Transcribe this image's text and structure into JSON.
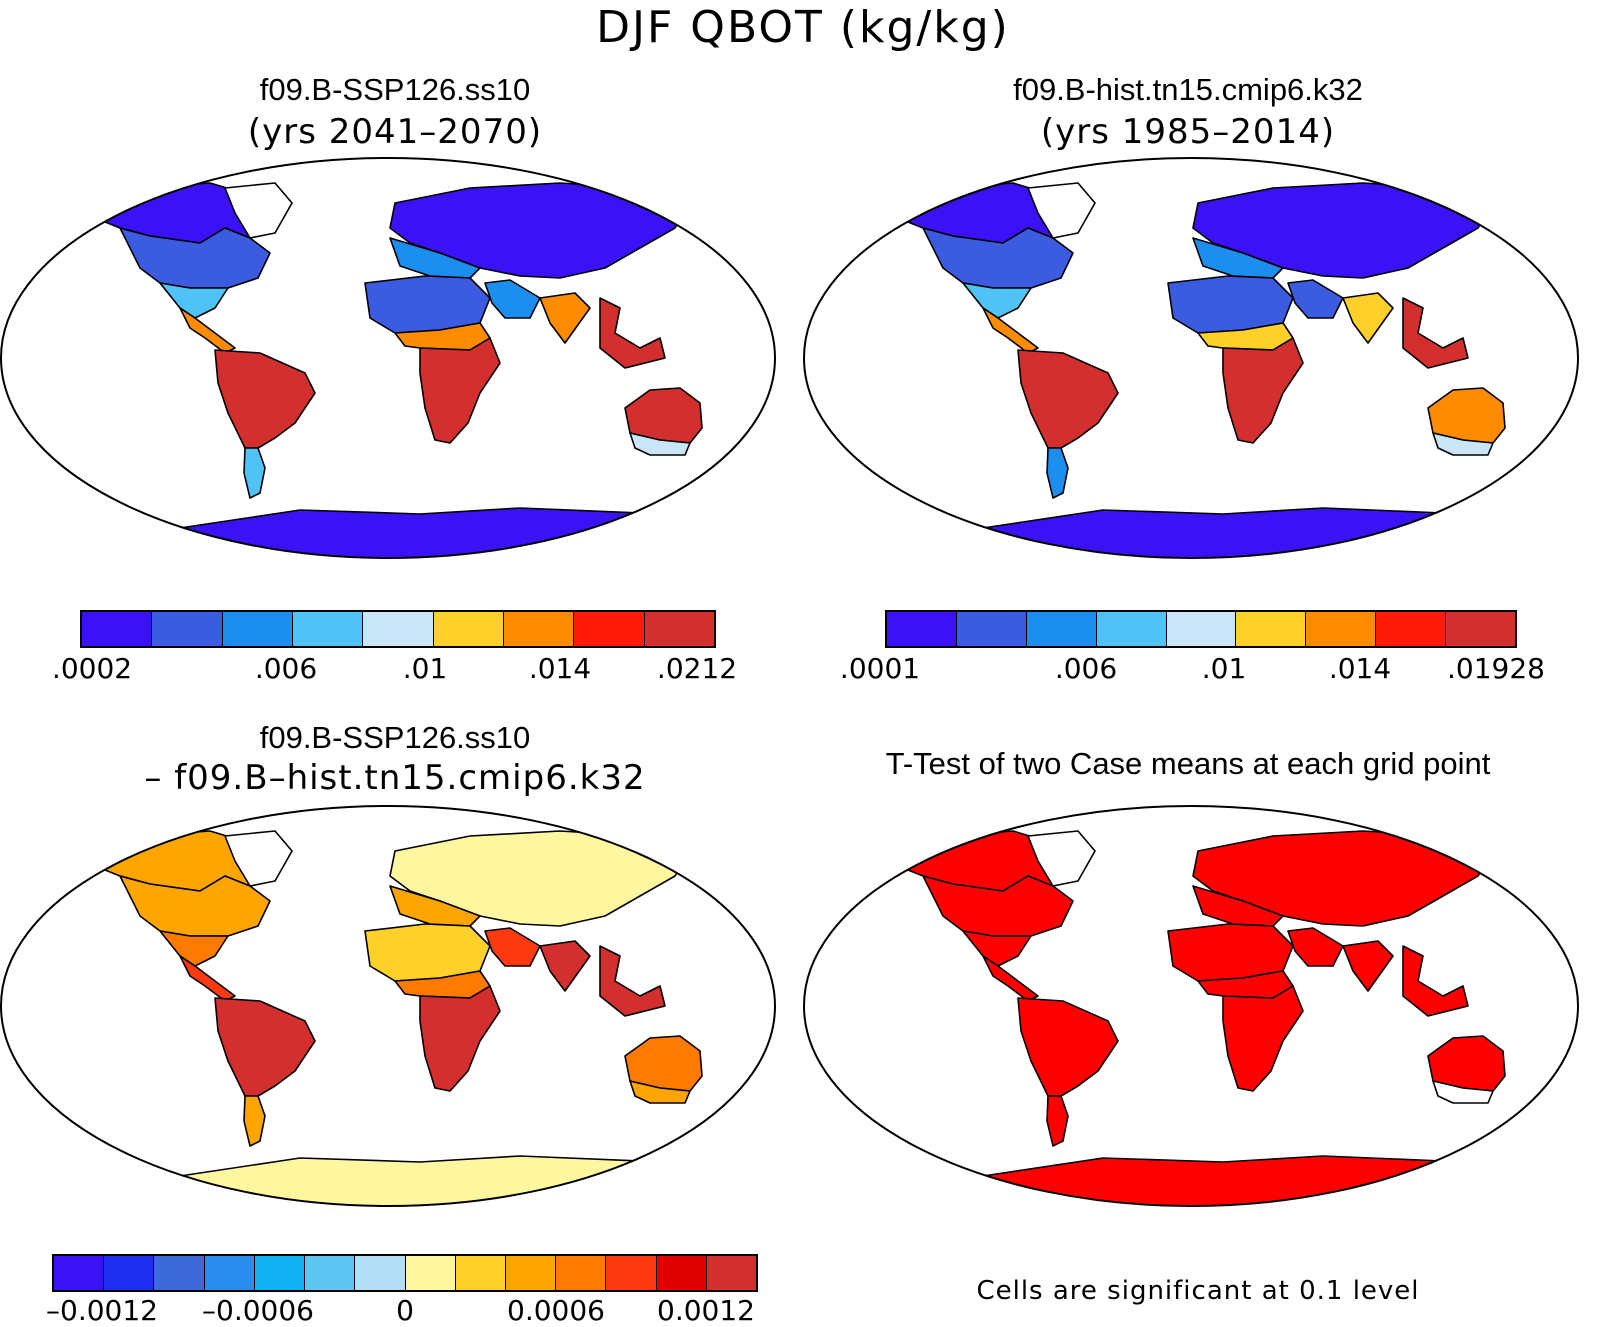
{
  "figure": {
    "title": "DJF QBOT (kg/kg)"
  },
  "panels": [
    {
      "id": "future",
      "title": "f09.B-SSP126.ss10",
      "subtitle": "(yrs 2041–2070)",
      "colorbar": {
        "colors": [
          "#3a12f5",
          "#3b5be0",
          "#1b8ef0",
          "#4fc3f5",
          "#c8e6f7",
          "#ffd02a",
          "#ff8c00",
          "#ff1a0a",
          "#d42f2f"
        ],
        "labels": [
          ".0002",
          ".006",
          ".01",
          ".014",
          ".0212"
        ]
      }
    },
    {
      "id": "historical",
      "title": "f09.B-hist.tn15.cmip6.k32",
      "subtitle": "(yrs 1985–2014)",
      "colorbar": {
        "colors": [
          "#3a12f5",
          "#3b5be0",
          "#1b8ef0",
          "#4fc3f5",
          "#c8e6f7",
          "#ffd02a",
          "#ff8c00",
          "#ff1a0a",
          "#d42f2f"
        ],
        "labels": [
          ".0001",
          ".006",
          ".01",
          ".014",
          ".01928"
        ]
      }
    },
    {
      "id": "difference",
      "title": "f09.B-SSP126.ss10",
      "subtitle": "– f09.B–hist.tn15.cmip6.k32",
      "colorbar": {
        "colors": [
          "#3a12f5",
          "#2030f0",
          "#3b6ad8",
          "#2a8ef0",
          "#12b2f5",
          "#5ec4f0",
          "#b3def5",
          "#fff6a0",
          "#ffd02a",
          "#ffa500",
          "#ff7a00",
          "#ff3a10",
          "#e00000",
          "#d42f2f"
        ],
        "labels": [
          "–0.0012",
          "–0.0006",
          "0",
          "0.0006",
          "0.0012"
        ]
      }
    },
    {
      "id": "ttest",
      "title": "T-Test of two Case means at each grid point",
      "note": "Cells are significant at 0.1 level"
    }
  ],
  "maps": {
    "future": {
      "fills": {
        "north_america_north": "#3a12f5",
        "north_america_mid": "#3b5be0",
        "north_america_south": "#4fc3f5",
        "central_america": "#ff8c00",
        "south_america": "#d42f2f",
        "south_america_south": "#4fc3f5",
        "europe_asia": "#3a12f5",
        "europe_south": "#1b8ef0",
        "sahara": "#3b5be0",
        "sahel": "#ff8c00",
        "africa_central": "#d42f2f",
        "arabia": "#1b8ef0",
        "india": "#ff8c00",
        "se_asia": "#d42f2f",
        "australia": "#d42f2f",
        "australia_south": "#c8e6f7",
        "antarctica": "#3a12f5",
        "greenland": "#ffffff"
      }
    },
    "historical": {
      "fills": {
        "north_america_north": "#3a12f5",
        "north_america_mid": "#3b5be0",
        "north_america_south": "#4fc3f5",
        "central_america": "#ff8c00",
        "south_america": "#d42f2f",
        "south_america_south": "#1b8ef0",
        "europe_asia": "#3a12f5",
        "europe_south": "#1b8ef0",
        "sahara": "#3b5be0",
        "sahel": "#ffd02a",
        "africa_central": "#d42f2f",
        "arabia": "#3b5be0",
        "india": "#ffd02a",
        "se_asia": "#d42f2f",
        "australia": "#ff8c00",
        "australia_south": "#c8e6f7",
        "antarctica": "#3a12f5",
        "greenland": "#ffffff"
      }
    },
    "difference": {
      "fills": {
        "north_america_north": "#ffa500",
        "north_america_mid": "#ffa500",
        "north_america_south": "#ff7a00",
        "central_america": "#ff3a10",
        "south_america": "#d42f2f",
        "south_america_south": "#ffa500",
        "europe_asia": "#fff6a0",
        "europe_south": "#ffa500",
        "sahara": "#ffd02a",
        "sahel": "#ff7a00",
        "africa_central": "#d42f2f",
        "arabia": "#ff3a10",
        "india": "#d42f2f",
        "se_asia": "#d42f2f",
        "australia": "#ff7a00",
        "australia_south": "#ffa500",
        "antarctica": "#fff6a0",
        "greenland": "#ffffff"
      }
    },
    "ttest": {
      "fills": {
        "north_america_north": "#ff0000",
        "north_america_mid": "#ff0000",
        "north_america_south": "#ff0000",
        "central_america": "#ff0000",
        "south_america": "#ff0000",
        "south_america_south": "#ff0000",
        "europe_asia": "#ff0000",
        "europe_south": "#ff0000",
        "sahara": "#ff0000",
        "sahel": "#ff0000",
        "africa_central": "#ff0000",
        "arabia": "#ff0000",
        "india": "#ff0000",
        "se_asia": "#ff0000",
        "australia": "#ff0000",
        "australia_south": "#ffffff",
        "antarctica": "#ff0000",
        "greenland": "#ffffff"
      }
    }
  }
}
